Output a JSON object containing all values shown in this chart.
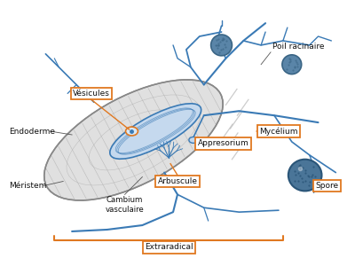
{
  "bg_color": "#ffffff",
  "blue": "#3a7ab5",
  "blue_light": "#c5d9ee",
  "blue_dark": "#2a5a85",
  "gray_root": "#d5d5d5",
  "gray_cell": "#aaaaaa",
  "orange": "#e07820",
  "black": "#222222",
  "labels": {
    "vesicules": "Vésicules",
    "endoderme": "Endoderme",
    "meristem": "Méristem",
    "cambium": "Cambium\nvasculaire",
    "arbuscule": "Arbuscule",
    "appresorium": "Appresorium",
    "mycelium": "Mycélium",
    "spore": "Spore",
    "poil": "Poil racinaire",
    "extraradical": "Extraradical"
  },
  "figsize": [
    4.0,
    3.0
  ],
  "dpi": 100
}
